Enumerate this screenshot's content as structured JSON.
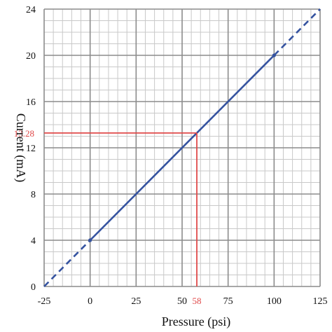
{
  "chart_data": {
    "type": "line",
    "xlabel": "Pressure (psi)",
    "ylabel": "Current (mA)",
    "xlim": [
      -25,
      125
    ],
    "ylim": [
      0,
      24
    ],
    "x_ticks": [
      -25,
      0,
      25,
      50,
      75,
      100,
      125
    ],
    "y_ticks": [
      0,
      4,
      8,
      12,
      16,
      20,
      24
    ],
    "x_minor_step": 5,
    "y_minor_step": 1,
    "grid": true,
    "series": [
      {
        "style": "solid",
        "color": "#3553a0",
        "x": [
          0,
          100
        ],
        "y": [
          4,
          20
        ]
      },
      {
        "style": "dashed",
        "color": "#3553a0",
        "x": [
          -25,
          0
        ],
        "y": [
          0,
          4
        ]
      },
      {
        "style": "dashed",
        "color": "#3553a0",
        "x": [
          100,
          125
        ],
        "y": [
          20,
          24
        ]
      }
    ],
    "markers": [
      {
        "x": 0,
        "y": 4
      },
      {
        "x": 100,
        "y": 20
      }
    ],
    "annotation": {
      "x": 58,
      "y": 13.28,
      "x_label": "58",
      "y_label": "13.28",
      "color": "#e04a4a"
    }
  }
}
